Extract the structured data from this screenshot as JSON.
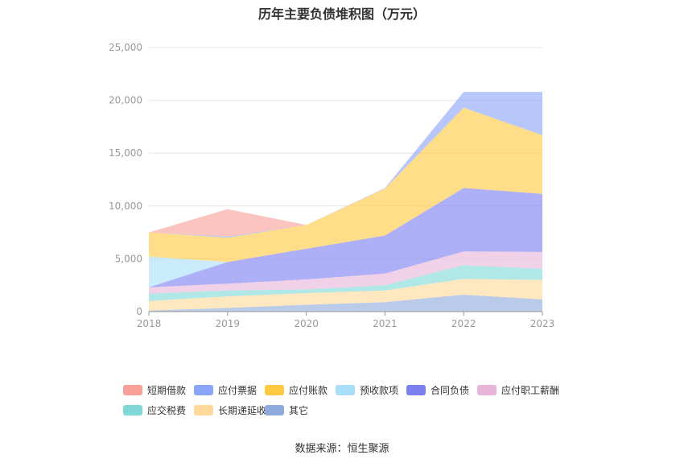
{
  "title": "历年主要负债堆积图（万元）",
  "source": "数据来源：恒生聚源",
  "chart_data": {
    "type": "area",
    "stacked": true,
    "x": [
      "2018",
      "2019",
      "2020",
      "2021",
      "2022",
      "2023"
    ],
    "ylim": [
      0,
      25000
    ],
    "yticks": [
      "0",
      "5,000",
      "10,000",
      "15,000",
      "20,000",
      "25,000"
    ],
    "ytick_values": [
      0,
      5000,
      10000,
      15000,
      20000,
      25000
    ],
    "grid": true,
    "legend_position": "bottom",
    "series": [
      {
        "name": "其它",
        "color": "#8faadc",
        "values": [
          100,
          350,
          650,
          900,
          1600,
          1150
        ]
      },
      {
        "name": "长期递延收益",
        "color": "#ffd99a",
        "values": [
          900,
          1100,
          1100,
          1100,
          1500,
          1850
        ]
      },
      {
        "name": "应交税费",
        "color": "#80d8d8",
        "values": [
          700,
          550,
          350,
          500,
          1300,
          1050
        ]
      },
      {
        "name": "应付职工薪酬",
        "color": "#e8b4d8",
        "values": [
          600,
          650,
          950,
          1100,
          1300,
          1600
        ]
      },
      {
        "name": "合同负债",
        "color": "#7b7ff0",
        "values": [
          0,
          2050,
          2900,
          3600,
          6000,
          5500
        ]
      },
      {
        "name": "预收款项",
        "color": "#a8defa",
        "values": [
          2900,
          0,
          0,
          0,
          0,
          0
        ]
      },
      {
        "name": "应付账款",
        "color": "#ffc840",
        "values": [
          2300,
          2300,
          2250,
          4450,
          7600,
          5550
        ]
      },
      {
        "name": "应付票据",
        "color": "#8aa4f8",
        "values": [
          0,
          100,
          0,
          50,
          1500,
          4100
        ]
      },
      {
        "name": "短期借款",
        "color": "#f8a098",
        "values": [
          0,
          2600,
          0,
          0,
          0,
          0
        ]
      }
    ],
    "legend": [
      {
        "name": "短期借款",
        "color": "#f8a098"
      },
      {
        "name": "应付票据",
        "color": "#8aa4f8"
      },
      {
        "name": "应付账款",
        "color": "#ffc840"
      },
      {
        "name": "预收款项",
        "color": "#a8defa"
      },
      {
        "name": "合同负债",
        "color": "#7b7ff0"
      },
      {
        "name": "应付职工薪酬",
        "color": "#e8b4d8"
      },
      {
        "name": "应交税费",
        "color": "#80d8d8"
      },
      {
        "name": "长期递延收益",
        "color": "#ffd99a"
      },
      {
        "name": "其它",
        "color": "#8faadc"
      }
    ]
  }
}
